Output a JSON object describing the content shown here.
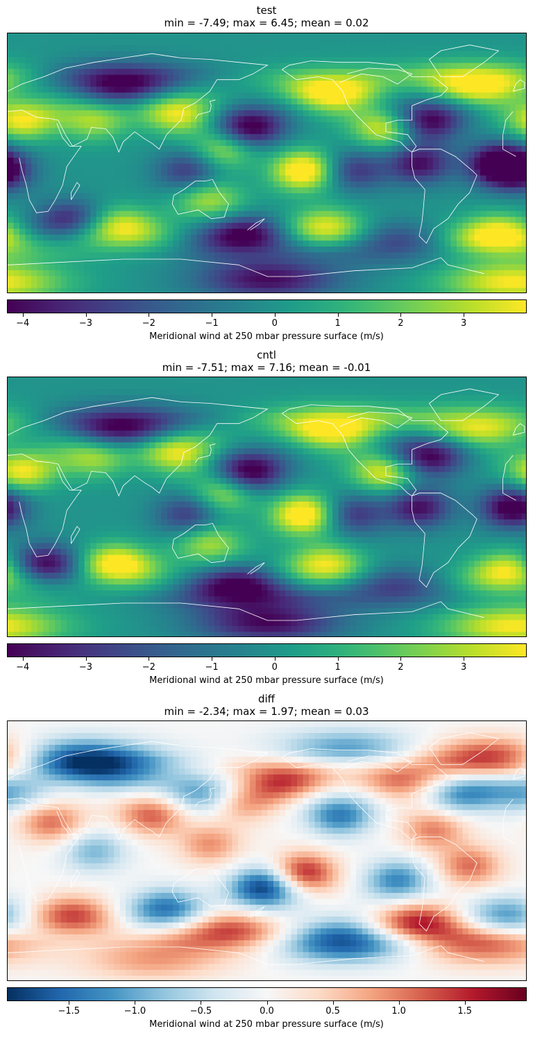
{
  "chart_data": [
    {
      "type": "heatmap",
      "title": "test",
      "subtitle": "min = -7.49; max = 6.45; mean = 0.02",
      "colormap": "viridis",
      "colorbar": {
        "label": "Meridional wind at 250 mbar pressure surface (m/s)",
        "range": [
          -4.25,
          4.0
        ],
        "ticks": [
          -4,
          -3,
          -2,
          -1,
          0,
          1,
          2,
          3
        ],
        "tick_labels": [
          "−4",
          "−3",
          "−2",
          "−1",
          "0",
          "1",
          "2",
          "3"
        ]
      },
      "stats": {
        "min": -7.49,
        "max": 6.45,
        "mean": 0.02
      },
      "field_centers": [
        {
          "lon": 80,
          "lat": 55,
          "v": -5
        },
        {
          "lon": 118,
          "lat": 35,
          "v": 4
        },
        {
          "lon": 168,
          "lat": 25,
          "v": -5
        },
        {
          "lon": 225,
          "lat": 50,
          "v": 5
        },
        {
          "lon": 262,
          "lat": 25,
          "v": 4
        },
        {
          "lon": 290,
          "lat": 30,
          "v": -5
        },
        {
          "lon": 325,
          "lat": 55,
          "v": 5
        },
        {
          "lon": 10,
          "lat": 30,
          "v": 4
        },
        {
          "lon": 60,
          "lat": 30,
          "v": 3
        },
        {
          "lon": 150,
          "lat": 10,
          "v": 3
        },
        {
          "lon": 205,
          "lat": -5,
          "v": 5
        },
        {
          "lon": 240,
          "lat": -5,
          "v": -3
        },
        {
          "lon": 285,
          "lat": 0,
          "v": -4
        },
        {
          "lon": 340,
          "lat": 0,
          "v": -5
        },
        {
          "lon": 355,
          "lat": -5,
          "v": -4
        },
        {
          "lon": 45,
          "lat": -40,
          "v": -4
        },
        {
          "lon": 75,
          "lat": -45,
          "v": 5
        },
        {
          "lon": 125,
          "lat": -5,
          "v": -3
        },
        {
          "lon": 140,
          "lat": -25,
          "v": 3
        },
        {
          "lon": 165,
          "lat": -50,
          "v": -5
        },
        {
          "lon": 220,
          "lat": -45,
          "v": 4
        },
        {
          "lon": 265,
          "lat": -55,
          "v": -3
        },
        {
          "lon": 340,
          "lat": -50,
          "v": 5
        },
        {
          "lon": 180,
          "lat": -80,
          "v": -4
        },
        {
          "lon": 350,
          "lat": -82,
          "v": 4
        }
      ]
    },
    {
      "type": "heatmap",
      "title": "cntl",
      "subtitle": "min = -7.51; max = 7.16; mean = -0.01",
      "colormap": "viridis",
      "colorbar": {
        "label": "Meridional wind at 250 mbar pressure surface (m/s)",
        "range": [
          -4.25,
          4.0
        ],
        "ticks": [
          -4,
          -3,
          -2,
          -1,
          0,
          1,
          2,
          3
        ],
        "tick_labels": [
          "−4",
          "−3",
          "−2",
          "−1",
          "0",
          "1",
          "2",
          "3"
        ]
      },
      "stats": {
        "min": -7.51,
        "max": 7.16,
        "mean": -0.01
      },
      "field_centers": [
        {
          "lon": 80,
          "lat": 55,
          "v": -5
        },
        {
          "lon": 118,
          "lat": 38,
          "v": 4
        },
        {
          "lon": 168,
          "lat": 25,
          "v": -5
        },
        {
          "lon": 225,
          "lat": 55,
          "v": 5
        },
        {
          "lon": 262,
          "lat": 25,
          "v": 4
        },
        {
          "lon": 290,
          "lat": 35,
          "v": -5
        },
        {
          "lon": 325,
          "lat": 55,
          "v": 4
        },
        {
          "lon": 10,
          "lat": 25,
          "v": 4
        },
        {
          "lon": 60,
          "lat": 35,
          "v": 3
        },
        {
          "lon": 150,
          "lat": 10,
          "v": 3
        },
        {
          "lon": 205,
          "lat": -5,
          "v": 5
        },
        {
          "lon": 240,
          "lat": -5,
          "v": -3
        },
        {
          "lon": 285,
          "lat": 0,
          "v": -4
        },
        {
          "lon": 350,
          "lat": 0,
          "v": -5
        },
        {
          "lon": 25,
          "lat": -40,
          "v": -5
        },
        {
          "lon": 75,
          "lat": -40,
          "v": 5
        },
        {
          "lon": 125,
          "lat": -5,
          "v": -3
        },
        {
          "lon": 140,
          "lat": -25,
          "v": 3
        },
        {
          "lon": 160,
          "lat": -55,
          "v": -5
        },
        {
          "lon": 220,
          "lat": -40,
          "v": 4
        },
        {
          "lon": 265,
          "lat": -55,
          "v": -3
        },
        {
          "lon": 350,
          "lat": -45,
          "v": 5
        },
        {
          "lon": 180,
          "lat": -80,
          "v": -4
        },
        {
          "lon": 350,
          "lat": -82,
          "v": 4
        }
      ]
    },
    {
      "type": "heatmap",
      "title": "diff",
      "subtitle": "min = -2.34; max = 1.97; mean = 0.03",
      "colormap": "RdBu_r",
      "colorbar": {
        "label": "Meridional wind at 250 mbar pressure surface (m/s)",
        "range": [
          -1.97,
          1.97
        ],
        "ticks": [
          -1.5,
          -1.0,
          -0.5,
          0.0,
          0.5,
          1.0,
          1.5
        ],
        "tick_labels": [
          "−1.5",
          "−1.0",
          "−0.5",
          "0.0",
          "0.5",
          "1.0",
          "1.5"
        ]
      },
      "stats": {
        "min": -2.34,
        "max": 1.97,
        "mean": 0.03
      },
      "field_centers": [
        {
          "lon": 45,
          "lat": 65,
          "v": -1.6
        },
        {
          "lon": 75,
          "lat": 55,
          "v": -1.2
        },
        {
          "lon": 135,
          "lat": 40,
          "v": -1.4
        },
        {
          "lon": 192,
          "lat": 50,
          "v": 1.4
        },
        {
          "lon": 235,
          "lat": 70,
          "v": -1.2
        },
        {
          "lon": 275,
          "lat": 50,
          "v": 1.3
        },
        {
          "lon": 315,
          "lat": 40,
          "v": -1.3
        },
        {
          "lon": 340,
          "lat": 65,
          "v": 1.6
        },
        {
          "lon": 360,
          "lat": 40,
          "v": -1.0
        },
        {
          "lon": 30,
          "lat": 20,
          "v": 1.1
        },
        {
          "lon": 100,
          "lat": 25,
          "v": 1.2
        },
        {
          "lon": 162,
          "lat": 35,
          "v": 1.0
        },
        {
          "lon": 230,
          "lat": 25,
          "v": -1.4
        },
        {
          "lon": 295,
          "lat": 15,
          "v": 1.0
        },
        {
          "lon": 60,
          "lat": 0,
          "v": -0.9
        },
        {
          "lon": 140,
          "lat": 5,
          "v": 0.9
        },
        {
          "lon": 205,
          "lat": -15,
          "v": 1.6
        },
        {
          "lon": 178,
          "lat": -25,
          "v": -2.0
        },
        {
          "lon": 270,
          "lat": -20,
          "v": -1.3
        },
        {
          "lon": 320,
          "lat": -10,
          "v": 1.1
        },
        {
          "lon": 45,
          "lat": -45,
          "v": 1.4
        },
        {
          "lon": 110,
          "lat": -40,
          "v": -1.5
        },
        {
          "lon": 150,
          "lat": -55,
          "v": 1.5
        },
        {
          "lon": 235,
          "lat": -62,
          "v": -2.0
        },
        {
          "lon": 285,
          "lat": -50,
          "v": 1.7
        },
        {
          "lon": 345,
          "lat": -45,
          "v": -1.2
        },
        {
          "lon": 330,
          "lat": -65,
          "v": 1.1
        },
        {
          "lon": 100,
          "lat": -75,
          "v": 0.8
        }
      ]
    }
  ]
}
